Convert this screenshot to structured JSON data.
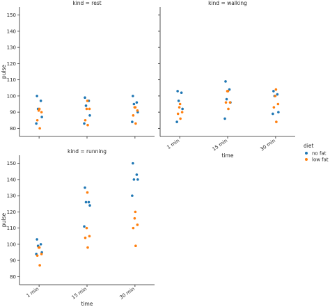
{
  "chart_data": {
    "type": "scatter",
    "subtype": "strip",
    "layout": "facet grid, 2 columns, 2 rows, shared y axis",
    "xlabel": "time",
    "ylabel": "pulse",
    "categories": [
      "1 min",
      "15 min",
      "30 min"
    ],
    "ylim": [
      75,
      155
    ],
    "yticks": [
      80,
      90,
      100,
      110,
      120,
      130,
      140,
      150
    ],
    "grid": false,
    "legend": {
      "title": "diet",
      "placement": "right",
      "entries": [
        {
          "name": "no fat",
          "color": "#1f77b4"
        },
        {
          "name": "low fat",
          "color": "#ff7f0e"
        }
      ]
    },
    "facets": [
      {
        "title": "kind = rest",
        "series": [
          {
            "name": "no fat",
            "points": [
              {
                "x": "1 min",
                "y": 83
              },
              {
                "x": "1 min",
                "y": 87
              },
              {
                "x": "1 min",
                "y": 92
              },
              {
                "x": "1 min",
                "y": 97
              },
              {
                "x": "1 min",
                "y": 100
              },
              {
                "x": "15 min",
                "y": 83
              },
              {
                "x": "15 min",
                "y": 88
              },
              {
                "x": "15 min",
                "y": 94
              },
              {
                "x": "15 min",
                "y": 97
              },
              {
                "x": "15 min",
                "y": 99
              },
              {
                "x": "30 min",
                "y": 84
              },
              {
                "x": "30 min",
                "y": 90
              },
              {
                "x": "30 min",
                "y": 95
              },
              {
                "x": "30 min",
                "y": 96
              },
              {
                "x": "30 min",
                "y": 100
              }
            ]
          },
          {
            "name": "low fat",
            "points": [
              {
                "x": "1 min",
                "y": 80
              },
              {
                "x": "1 min",
                "y": 85
              },
              {
                "x": "1 min",
                "y": 90
              },
              {
                "x": "1 min",
                "y": 91
              },
              {
                "x": "1 min",
                "y": 92
              },
              {
                "x": "15 min",
                "y": 82
              },
              {
                "x": "15 min",
                "y": 85
              },
              {
                "x": "15 min",
                "y": 92
              },
              {
                "x": "15 min",
                "y": 92
              },
              {
                "x": "15 min",
                "y": 97
              },
              {
                "x": "30 min",
                "y": 83
              },
              {
                "x": "30 min",
                "y": 88
              },
              {
                "x": "30 min",
                "y": 91
              },
              {
                "x": "30 min",
                "y": 93
              },
              {
                "x": "30 min",
                "y": 93
              }
            ]
          }
        ]
      },
      {
        "title": "kind = walking",
        "series": [
          {
            "name": "no fat",
            "points": [
              {
                "x": "1 min",
                "y": 84
              },
              {
                "x": "1 min",
                "y": 92
              },
              {
                "x": "1 min",
                "y": 97
              },
              {
                "x": "1 min",
                "y": 102
              },
              {
                "x": "1 min",
                "y": 103
              },
              {
                "x": "15 min",
                "y": 86
              },
              {
                "x": "15 min",
                "y": 96
              },
              {
                "x": "15 min",
                "y": 98
              },
              {
                "x": "15 min",
                "y": 104
              },
              {
                "x": "15 min",
                "y": 109
              },
              {
                "x": "30 min",
                "y": 89
              },
              {
                "x": "30 min",
                "y": 90
              },
              {
                "x": "30 min",
                "y": 100
              },
              {
                "x": "30 min",
                "y": 101
              },
              {
                "x": "30 min",
                "y": 103
              }
            ]
          },
          {
            "name": "low fat",
            "points": [
              {
                "x": "1 min",
                "y": 86
              },
              {
                "x": "1 min",
                "y": 89
              },
              {
                "x": "1 min",
                "y": 90
              },
              {
                "x": "1 min",
                "y": 93
              },
              {
                "x": "1 min",
                "y": 95
              },
              {
                "x": "15 min",
                "y": 92
              },
              {
                "x": "15 min",
                "y": 96
              },
              {
                "x": "15 min",
                "y": 96
              },
              {
                "x": "15 min",
                "y": 103
              },
              {
                "x": "15 min",
                "y": 103
              },
              {
                "x": "30 min",
                "y": 84
              },
              {
                "x": "30 min",
                "y": 93
              },
              {
                "x": "30 min",
                "y": 95
              },
              {
                "x": "30 min",
                "y": 100
              },
              {
                "x": "30 min",
                "y": 104
              }
            ]
          }
        ]
      },
      {
        "title": "kind = running",
        "series": [
          {
            "name": "no fat",
            "points": [
              {
                "x": "1 min",
                "y": 94
              },
              {
                "x": "1 min",
                "y": 95
              },
              {
                "x": "1 min",
                "y": 99
              },
              {
                "x": "1 min",
                "y": 100
              },
              {
                "x": "1 min",
                "y": 103
              },
              {
                "x": "15 min",
                "y": 111
              },
              {
                "x": "15 min",
                "y": 124
              },
              {
                "x": "15 min",
                "y": 126
              },
              {
                "x": "15 min",
                "y": 126
              },
              {
                "x": "15 min",
                "y": 135
              },
              {
                "x": "30 min",
                "y": 130
              },
              {
                "x": "30 min",
                "y": 140
              },
              {
                "x": "30 min",
                "y": 140
              },
              {
                "x": "30 min",
                "y": 143
              },
              {
                "x": "30 min",
                "y": 150
              }
            ]
          },
          {
            "name": "low fat",
            "points": [
              {
                "x": "1 min",
                "y": 87
              },
              {
                "x": "1 min",
                "y": 93
              },
              {
                "x": "1 min",
                "y": 94
              },
              {
                "x": "1 min",
                "y": 98
              },
              {
                "x": "1 min",
                "y": 98
              },
              {
                "x": "15 min",
                "y": 98
              },
              {
                "x": "15 min",
                "y": 104
              },
              {
                "x": "15 min",
                "y": 105
              },
              {
                "x": "15 min",
                "y": 110
              },
              {
                "x": "15 min",
                "y": 132
              },
              {
                "x": "30 min",
                "y": 99
              },
              {
                "x": "30 min",
                "y": 110
              },
              {
                "x": "30 min",
                "y": 112
              },
              {
                "x": "30 min",
                "y": 116
              },
              {
                "x": "30 min",
                "y": 120
              }
            ]
          }
        ]
      }
    ]
  }
}
